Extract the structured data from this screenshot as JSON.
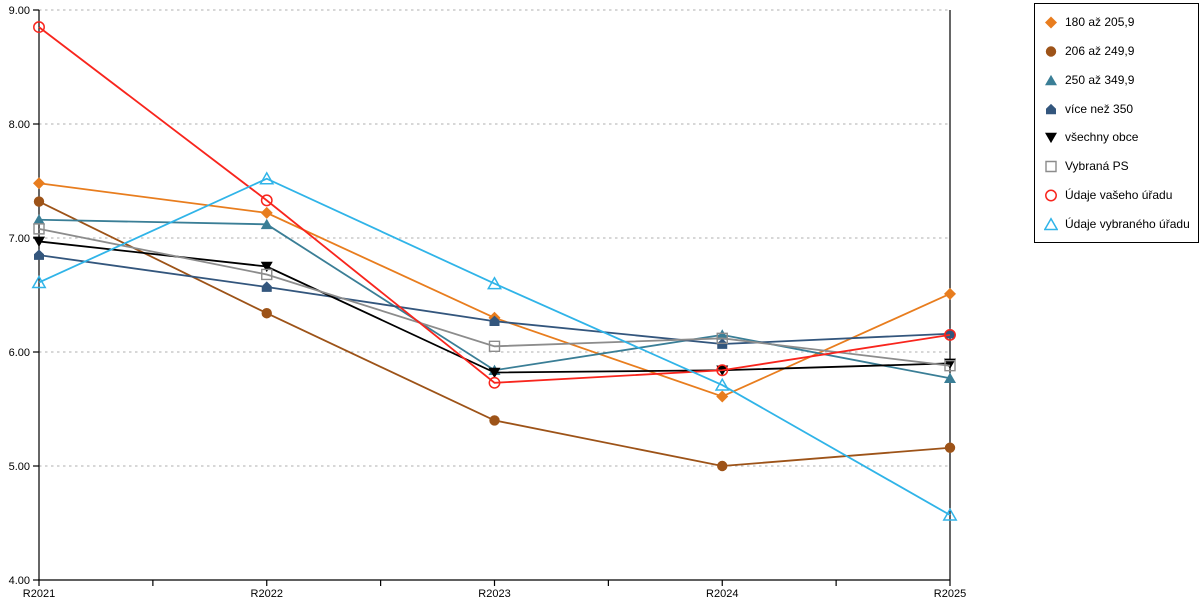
{
  "chart_data": {
    "type": "line",
    "title": "",
    "xlabel": "",
    "ylabel": "",
    "categories": [
      "R2021",
      "R2022",
      "R2023",
      "R2024",
      "R2025"
    ],
    "ylim": [
      4,
      9
    ],
    "ytick_labels": [
      "9.00",
      "8.00",
      "7.00",
      "6.00",
      "5.00",
      "4.00"
    ],
    "ytick_values": [
      9,
      8,
      7,
      6,
      5,
      4
    ],
    "grid": "horizontal dotted",
    "legend_position": "right",
    "series": [
      {
        "name": "180 až 205,9",
        "color": "#E87D1E",
        "marker": "diamond",
        "values": [
          7.48,
          7.22,
          6.3,
          5.61,
          6.51
        ]
      },
      {
        "name": "206 až 249,9",
        "color": "#9D5318",
        "marker": "circle",
        "values": [
          7.32,
          6.34,
          5.4,
          5.0,
          5.16
        ]
      },
      {
        "name": "250 až 349,9",
        "color": "#3A7E96",
        "marker": "triangle-up",
        "values": [
          7.16,
          7.12,
          5.84,
          6.15,
          5.77
        ]
      },
      {
        "name": "více než 350",
        "color": "#33567D",
        "marker": "pentagon",
        "values": [
          6.85,
          6.57,
          6.27,
          6.07,
          6.16
        ]
      },
      {
        "name": "všechny obce",
        "color": "#000000",
        "marker": "triangle-down",
        "values": [
          6.97,
          6.75,
          5.82,
          5.84,
          5.9
        ]
      },
      {
        "name": "Vybraná PS",
        "color": "#8C8C8C",
        "marker": "square-open",
        "values": [
          7.08,
          6.68,
          6.05,
          6.12,
          5.88
        ]
      },
      {
        "name": "Údaje vašeho úřadu",
        "color": "#F8251D",
        "marker": "circle-open",
        "values": [
          8.85,
          7.33,
          5.73,
          5.84,
          6.15
        ]
      },
      {
        "name": "Údaje vybraného úřadu",
        "color": "#30B4E8",
        "marker": "triangle-open",
        "values": [
          6.61,
          7.52,
          6.6,
          5.71,
          4.57
        ]
      }
    ],
    "colors": {
      "axis": "#000000",
      "gridline": "#AFAFAF",
      "background": "#FFFFFF"
    }
  }
}
